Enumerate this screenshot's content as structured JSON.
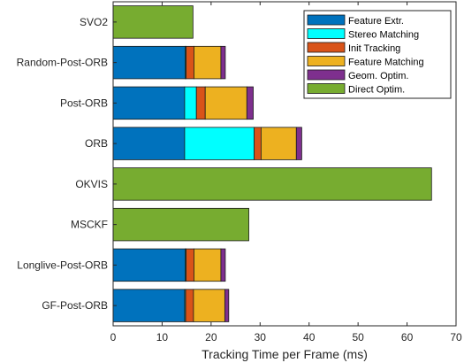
{
  "chart_data": {
    "type": "bar",
    "orientation": "horizontal",
    "stacked": true,
    "title": "",
    "xlabel": "Tracking Time per Frame (ms)",
    "ylabel": "",
    "xlim": [
      0,
      70
    ],
    "xticks": [
      0,
      10,
      20,
      30,
      40,
      50,
      60,
      70
    ],
    "grid": false,
    "legend_position": "top-right",
    "categories": [
      "SVO2",
      "Random-Post-ORB",
      "Post-ORB",
      "ORB",
      "OKVIS",
      "MSCKF",
      "Longlive-Post-ORB",
      "GF-Post-ORB"
    ],
    "series": [
      {
        "name": "Feature Extr.",
        "color": "#0072BD",
        "values": [
          0,
          14.7,
          14.6,
          14.6,
          0,
          0,
          14.7,
          14.6
        ]
      },
      {
        "name": "Stereo Matching",
        "color": "#00FFFF",
        "values": [
          0,
          0.2,
          2.4,
          14.2,
          0,
          0,
          0.2,
          0.2
        ]
      },
      {
        "name": "Init Tracking",
        "color": "#D95319",
        "values": [
          0,
          1.6,
          1.8,
          1.4,
          0,
          0,
          1.6,
          1.6
        ]
      },
      {
        "name": "Feature Matching",
        "color": "#EDB120",
        "values": [
          0,
          5.5,
          8.5,
          7.2,
          0,
          0,
          5.5,
          6.4
        ]
      },
      {
        "name": "Geom. Optim.",
        "color": "#7E2F8E",
        "values": [
          0,
          0.9,
          1.3,
          1.1,
          0,
          0,
          0.9,
          0.8
        ]
      },
      {
        "name": "Direct Optim.",
        "color": "#77AC30",
        "values": [
          16.3,
          0,
          0,
          0,
          65.0,
          27.7,
          0,
          0
        ]
      }
    ]
  }
}
